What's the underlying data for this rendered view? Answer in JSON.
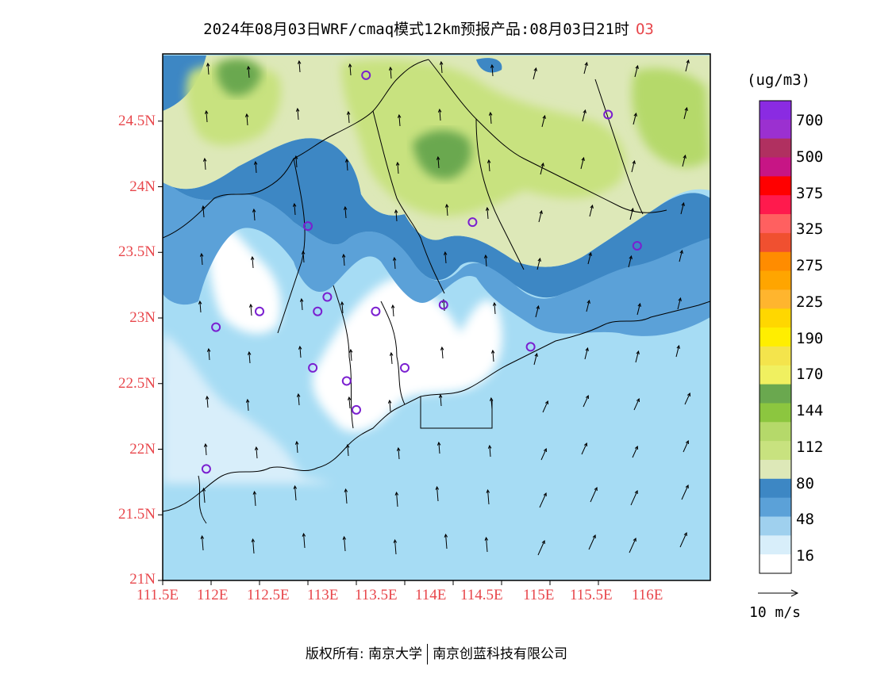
{
  "title": {
    "main": "2024年08月03日WRF/cmaq模式12km预报产品:08月03日21时",
    "species": "O3"
  },
  "colors": {
    "axis_label": "#e8474c",
    "coastline": "#000000",
    "frame": "#000000"
  },
  "axes": {
    "lat_labels": [
      "24.5N",
      "24N",
      "23.5N",
      "23N",
      "22.5N",
      "22N",
      "21.5N",
      "21N"
    ],
    "lon_labels": [
      "111.5E",
      "112E",
      "112.5E",
      "113E",
      "113.5E",
      "114E",
      "114.5E",
      "115E",
      "115.5E",
      "116E"
    ]
  },
  "colorbar": {
    "unit": "(ug/m3)",
    "labels": [
      "700",
      "500",
      "375",
      "325",
      "275",
      "225",
      "190",
      "170",
      "144",
      "112",
      "80",
      "48",
      "16"
    ],
    "colors": [
      "#8a2be2",
      "#9b30d0",
      "#b03060",
      "#c71585",
      "#ff0000",
      "#ff1a4d",
      "#ff6060",
      "#f05030",
      "#ff8c00",
      "#ffa500",
      "#ffb52e",
      "#ffd700",
      "#ffee00",
      "#f4e44c",
      "#f0f060",
      "#6aa84f",
      "#8cc63f",
      "#b5d96a",
      "#c8e27f",
      "#dde8b8",
      "#3d87c4",
      "#5ba1d8",
      "#9fd0ee",
      "#d8eefa",
      "#ffffff"
    ]
  },
  "wind_vector": {
    "reference_label": "10 m/s"
  },
  "footer": {
    "left": "版权所有: 南京大学",
    "right": "南京创蓝科技有限公司"
  },
  "chart_data": {
    "type": "heatmap",
    "title": "2024年08月03日WRF/cmaq模式12km预报产品:08月03日21时 O3",
    "xlabel": "",
    "ylabel": "",
    "xlim": [
      111.5,
      116.6
    ],
    "ylim": [
      21.0,
      25.0
    ],
    "colorbar_levels": [
      16,
      48,
      80,
      112,
      144,
      170,
      190,
      225,
      275,
      325,
      375,
      500,
      700
    ],
    "colorbar_unit": "(ug/m3)",
    "station_markers": [
      {
        "lon": 113.6,
        "lat": 24.85
      },
      {
        "lon": 116.1,
        "lat": 24.55
      },
      {
        "lon": 113.0,
        "lat": 23.7
      },
      {
        "lon": 114.7,
        "lat": 23.73
      },
      {
        "lon": 116.4,
        "lat": 23.55
      },
      {
        "lon": 113.2,
        "lat": 23.16
      },
      {
        "lon": 112.5,
        "lat": 23.05
      },
      {
        "lon": 113.1,
        "lat": 23.05
      },
      {
        "lon": 113.7,
        "lat": 23.05
      },
      {
        "lon": 114.4,
        "lat": 23.1
      },
      {
        "lon": 112.05,
        "lat": 22.93
      },
      {
        "lon": 115.3,
        "lat": 22.78
      },
      {
        "lon": 113.05,
        "lat": 22.62
      },
      {
        "lon": 113.4,
        "lat": 22.52
      },
      {
        "lon": 114.0,
        "lat": 22.62
      },
      {
        "lon": 113.5,
        "lat": 22.3
      },
      {
        "lon": 111.95,
        "lat": 21.85
      }
    ],
    "wind_reference": "10 m/s"
  }
}
